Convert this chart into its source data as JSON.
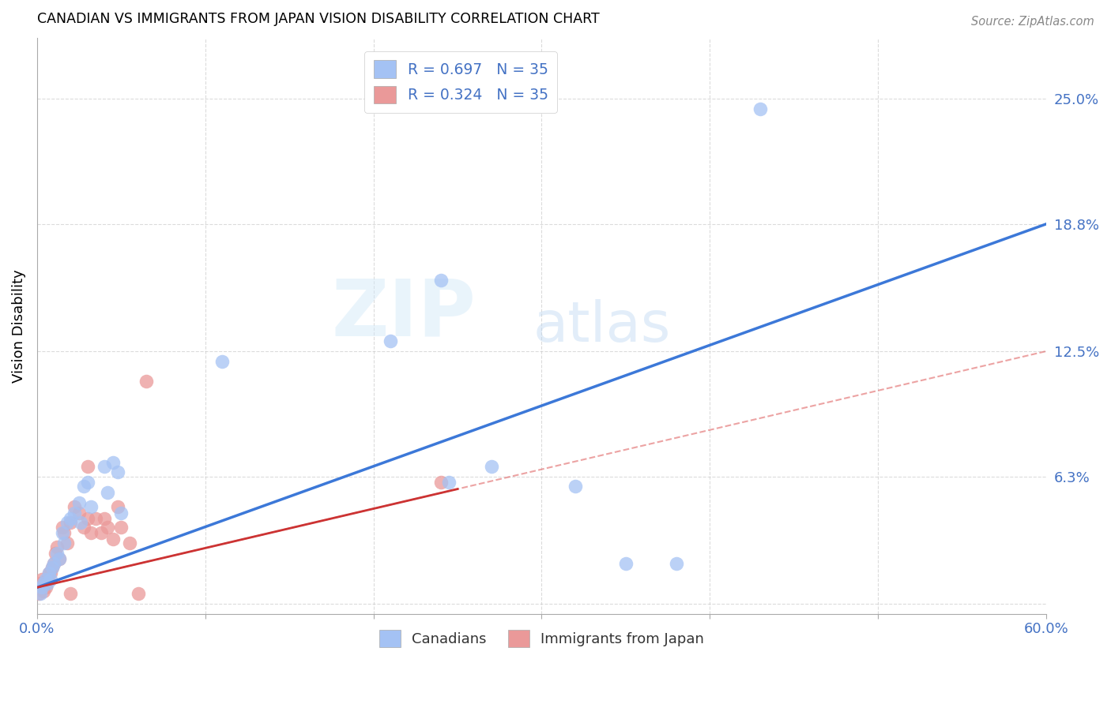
{
  "title": "CANADIAN VS IMMIGRANTS FROM JAPAN VISION DISABILITY CORRELATION CHART",
  "source": "Source: ZipAtlas.com",
  "ylabel": "Vision Disability",
  "xlim": [
    0.0,
    0.6
  ],
  "ylim": [
    -0.005,
    0.28
  ],
  "canadian_color": "#a4c2f4",
  "japan_color": "#ea9999",
  "trendline_canadian_color": "#3c78d8",
  "trendline_japan_color": "#cc4444",
  "legend_label_1": "R = 0.697   N = 35",
  "legend_label_2": "R = 0.324   N = 35",
  "legend_text_color": "#4472c4",
  "watermark_zip": "ZIP",
  "watermark_atlas": "atlas",
  "canadians_scatter": [
    [
      0.002,
      0.005
    ],
    [
      0.003,
      0.008
    ],
    [
      0.004,
      0.01
    ],
    [
      0.005,
      0.012
    ],
    [
      0.006,
      0.01
    ],
    [
      0.007,
      0.015
    ],
    [
      0.008,
      0.012
    ],
    [
      0.009,
      0.018
    ],
    [
      0.01,
      0.02
    ],
    [
      0.012,
      0.025
    ],
    [
      0.013,
      0.022
    ],
    [
      0.015,
      0.035
    ],
    [
      0.016,
      0.03
    ],
    [
      0.018,
      0.04
    ],
    [
      0.02,
      0.042
    ],
    [
      0.022,
      0.045
    ],
    [
      0.025,
      0.05
    ],
    [
      0.026,
      0.04
    ],
    [
      0.028,
      0.058
    ],
    [
      0.03,
      0.06
    ],
    [
      0.032,
      0.048
    ],
    [
      0.04,
      0.068
    ],
    [
      0.042,
      0.055
    ],
    [
      0.045,
      0.07
    ],
    [
      0.048,
      0.065
    ],
    [
      0.05,
      0.045
    ],
    [
      0.11,
      0.12
    ],
    [
      0.21,
      0.13
    ],
    [
      0.24,
      0.16
    ],
    [
      0.245,
      0.06
    ],
    [
      0.27,
      0.068
    ],
    [
      0.32,
      0.058
    ],
    [
      0.35,
      0.02
    ],
    [
      0.43,
      0.245
    ],
    [
      0.38,
      0.02
    ]
  ],
  "japan_scatter": [
    [
      0.001,
      0.005
    ],
    [
      0.002,
      0.01
    ],
    [
      0.003,
      0.012
    ],
    [
      0.004,
      0.006
    ],
    [
      0.005,
      0.008
    ],
    [
      0.006,
      0.012
    ],
    [
      0.007,
      0.015
    ],
    [
      0.008,
      0.015
    ],
    [
      0.009,
      0.018
    ],
    [
      0.01,
      0.02
    ],
    [
      0.011,
      0.025
    ],
    [
      0.012,
      0.028
    ],
    [
      0.013,
      0.022
    ],
    [
      0.015,
      0.038
    ],
    [
      0.016,
      0.035
    ],
    [
      0.018,
      0.03
    ],
    [
      0.02,
      0.04
    ],
    [
      0.022,
      0.048
    ],
    [
      0.025,
      0.045
    ],
    [
      0.028,
      0.038
    ],
    [
      0.03,
      0.042
    ],
    [
      0.032,
      0.035
    ],
    [
      0.035,
      0.042
    ],
    [
      0.038,
      0.035
    ],
    [
      0.04,
      0.042
    ],
    [
      0.042,
      0.038
    ],
    [
      0.045,
      0.032
    ],
    [
      0.048,
      0.048
    ],
    [
      0.05,
      0.038
    ],
    [
      0.055,
      0.03
    ],
    [
      0.06,
      0.005
    ],
    [
      0.065,
      0.11
    ],
    [
      0.02,
      0.005
    ],
    [
      0.03,
      0.068
    ],
    [
      0.24,
      0.06
    ]
  ],
  "background_color": "#ffffff",
  "grid_color": "#cccccc",
  "ytick_vals_right": [
    0.25,
    0.188,
    0.125,
    0.063,
    0.0
  ],
  "ytick_labels_right": [
    "25.0%",
    "18.8%",
    "12.5%",
    "6.3%",
    ""
  ]
}
